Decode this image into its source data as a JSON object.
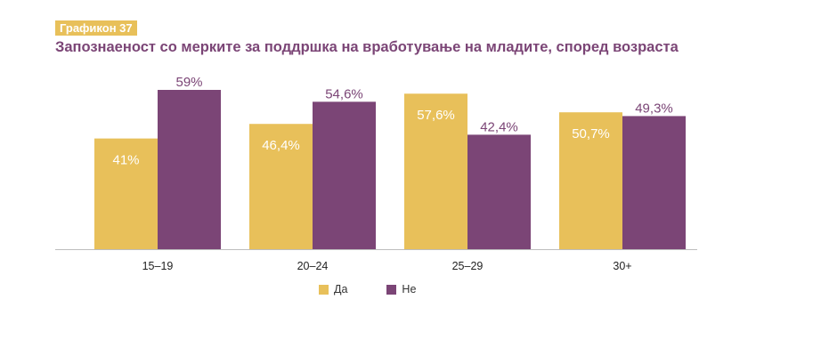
{
  "header": {
    "badge": "Графикон 37",
    "title": "Запознаеност со мерките за поддршка на вработување на младите, според возраста"
  },
  "colors": {
    "accent_yellow": "#e8c05a",
    "accent_purple": "#7b4576"
  },
  "chart_data": {
    "type": "bar",
    "title": "Запознаеност со мерките за поддршка на вработување на младите, според возраста",
    "categories": [
      "15–19",
      "20–24",
      "25–29",
      "30+"
    ],
    "series": [
      {
        "name": "Да",
        "color": "#e8c05a",
        "values": [
          41,
          46.4,
          57.6,
          50.7
        ],
        "labels": [
          "41%",
          "46,4%",
          "57,6%",
          "50,7%"
        ],
        "label_position": "inside"
      },
      {
        "name": "Не",
        "color": "#7b4576",
        "values": [
          59,
          54.6,
          42.4,
          49.3
        ],
        "labels": [
          "59%",
          "54,6%",
          "42,4%",
          "49,3%"
        ],
        "label_position": "above"
      }
    ],
    "ylim": [
      0,
      59
    ],
    "grid": false,
    "legend": "bottom-center"
  }
}
